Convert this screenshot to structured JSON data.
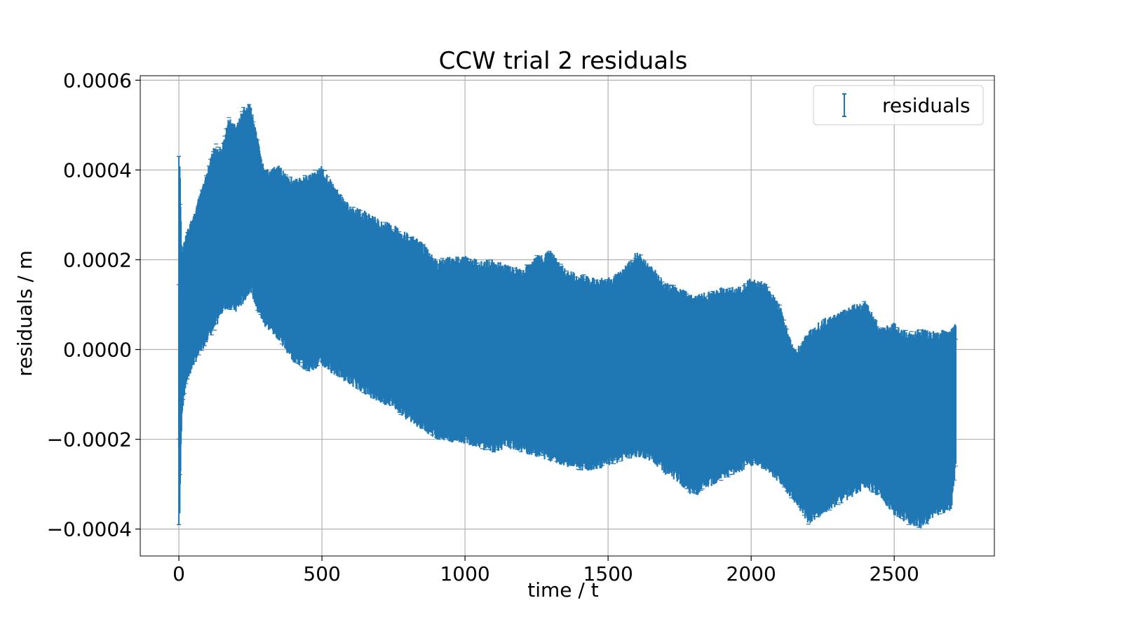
{
  "chart_data": {
    "type": "scatter",
    "style": "errorbar",
    "title": "CCW trial 2 residuals",
    "xlabel": "time / t",
    "ylabel": "residuals / m",
    "xlim": [
      -135,
      2850
    ],
    "ylim": [
      -0.00046,
      0.00061
    ],
    "x_ticks": [
      0,
      500,
      1000,
      1500,
      2000,
      2500
    ],
    "x_tick_labels": [
      "0",
      "500",
      "1000",
      "1500",
      "2000",
      "2500"
    ],
    "y_ticks": [
      -0.0004,
      -0.0002,
      0.0,
      0.0002,
      0.0004,
      0.0006
    ],
    "y_tick_labels": [
      "−0.0004",
      "−0.0002",
      "0.0000",
      "0.0002",
      "0.0004",
      "0.0006"
    ],
    "grid": true,
    "legend": {
      "position": "top-right",
      "entries": [
        "residuals"
      ]
    },
    "color": "#1f77b4",
    "series": [
      {
        "name": "residuals",
        "envelope": {
          "x": [
            0,
            3,
            10,
            25,
            50,
            75,
            100,
            125,
            150,
            175,
            200,
            225,
            250,
            275,
            300,
            350,
            400,
            450,
            500,
            550,
            600,
            650,
            700,
            750,
            800,
            850,
            900,
            950,
            1000,
            1050,
            1100,
            1150,
            1200,
            1250,
            1300,
            1350,
            1400,
            1450,
            1500,
            1550,
            1600,
            1650,
            1700,
            1750,
            1800,
            1850,
            1900,
            1950,
            2000,
            2050,
            2100,
            2150,
            2200,
            2250,
            2300,
            2350,
            2400,
            2450,
            2500,
            2550,
            2600,
            2650,
            2700,
            2715
          ],
          "upper": [
            0.00015,
            0.00043,
            0.00022,
            0.00026,
            0.0003,
            0.00035,
            0.0004,
            0.00046,
            0.00045,
            0.00052,
            0.0005,
            0.00054,
            0.00055,
            0.00047,
            0.0004,
            0.00041,
            0.00038,
            0.00039,
            0.00041,
            0.00036,
            0.00032,
            0.00031,
            0.00029,
            0.00028,
            0.00026,
            0.00024,
            0.0002,
            0.00021,
            0.00021,
            0.0002,
            0.0002,
            0.00019,
            0.00018,
            0.00021,
            0.00022,
            0.00018,
            0.00017,
            0.00016,
            0.00016,
            0.00018,
            0.00022,
            0.00019,
            0.00015,
            0.00014,
            0.00012,
            0.00013,
            0.00014,
            0.00014,
            0.00016,
            0.00015,
            0.0001,
            0.0,
            4e-05,
            7e-05,
            8e-05,
            0.0001,
            0.00011,
            5e-05,
            6e-05,
            4e-05,
            5e-05,
            4e-05,
            5e-05,
            6e-05
          ],
          "lower": [
            -0.00023,
            -0.00039,
            -0.00015,
            -8e-05,
            -4e-05,
            -1e-05,
            2e-05,
            4e-05,
            8e-05,
            9e-05,
            8e-05,
            0.0001,
            0.00013,
            8e-05,
            5e-05,
            2e-05,
            -3e-05,
            -5e-05,
            -4e-05,
            -6e-05,
            -8e-05,
            -0.0001,
            -0.00012,
            -0.00013,
            -0.00016,
            -0.00018,
            -0.0002,
            -0.00021,
            -0.00021,
            -0.00022,
            -0.00023,
            -0.00022,
            -0.00023,
            -0.00024,
            -0.00025,
            -0.00026,
            -0.00027,
            -0.00027,
            -0.00026,
            -0.00025,
            -0.00024,
            -0.00025,
            -0.00028,
            -0.0003,
            -0.00033,
            -0.00031,
            -0.00029,
            -0.00028,
            -0.00026,
            -0.00027,
            -0.0003,
            -0.00034,
            -0.00039,
            -0.00037,
            -0.00035,
            -0.00033,
            -0.00031,
            -0.00033,
            -0.00037,
            -0.00039,
            -0.0004,
            -0.00037,
            -0.00036,
            -0.00026
          ]
        }
      }
    ]
  }
}
